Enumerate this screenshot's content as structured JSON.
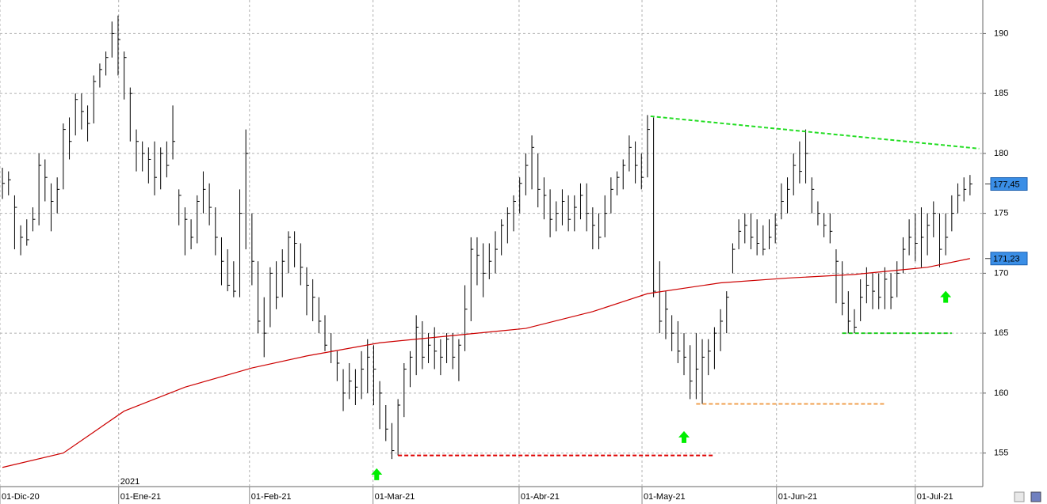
{
  "chart_data": {
    "type": "ohlc",
    "xlim": [
      -0.4,
      161.1
    ],
    "xticks": [
      {
        "value": -0.4,
        "label": "01-Dic-20"
      },
      {
        "value": 19.1,
        "label": "01-Ene-21"
      },
      {
        "value": 40.6,
        "label": "01-Feb-21"
      },
      {
        "value": 60.9,
        "label": "01-Mar-21"
      },
      {
        "value": 84.9,
        "label": "01-Abr-21"
      },
      {
        "value": 105.1,
        "label": "01-May-21"
      },
      {
        "value": 127.2,
        "label": "01-Jun-21"
      },
      {
        "value": 150,
        "label": "01-Jul-21"
      }
    ],
    "year_marker": {
      "value": 19.1,
      "label": "2021"
    },
    "ylim": [
      152.2,
      192.8
    ],
    "yticks": [
      155,
      160,
      165,
      170,
      175,
      180,
      185,
      190
    ],
    "grid": true,
    "color": "#000000",
    "high": [
      178.8,
      178.5,
      176.5,
      174,
      174.5,
      175.5,
      180,
      179.5,
      177.5,
      178,
      182.5,
      183,
      185,
      185,
      184,
      186.5,
      187.5,
      188.5,
      191,
      191.5,
      188.5,
      185.5,
      182,
      181,
      180.5,
      181,
      180.5,
      181,
      184,
      177,
      175.5,
      174.5,
      176.5,
      178.5,
      177.5,
      175.5,
      173,
      172,
      171,
      177,
      182,
      175,
      171,
      168,
      170.5,
      171,
      172,
      173.5,
      173.5,
      172.5,
      170.5,
      169.5,
      168,
      166.5,
      165,
      163.5,
      162,
      162.5,
      162,
      163.5,
      164.5,
      164,
      161,
      159,
      157.5,
      159.5,
      162.5,
      163.5,
      166.5,
      166,
      165,
      165.5,
      164.5,
      165,
      165,
      164.5,
      169,
      173,
      173,
      172.5,
      172.5,
      173.5,
      174.5,
      175.5,
      176.5,
      178,
      180,
      181.5,
      180,
      178,
      177,
      176,
      177,
      176.5,
      176.5,
      177.5,
      177.5,
      175.5,
      175,
      176.5,
      178,
      178.5,
      179.5,
      181.5,
      181,
      180,
      183.2,
      183,
      171,
      168.5,
      166.5,
      166,
      165,
      164,
      165,
      164.5,
      164.5,
      165.5,
      167,
      168.5,
      172.5,
      174.5,
      175,
      175,
      174.5,
      174,
      174.5,
      175,
      177.5,
      178,
      180,
      181,
      182,
      178,
      176,
      175,
      175,
      172,
      171,
      168.5,
      167,
      169.5,
      170.5,
      170,
      170,
      170.5,
      170,
      171,
      173,
      174.5,
      175,
      175.5,
      175,
      176,
      175,
      175,
      176.5,
      177.5,
      178,
      178.2
    ],
    "low": [
      176.2,
      176.5,
      172,
      171.5,
      172.3,
      173.5,
      174,
      176,
      173.5,
      175,
      177,
      179.5,
      181.5,
      182,
      181,
      182.5,
      185.5,
      186.5,
      188,
      186.5,
      184.5,
      181,
      178.5,
      178.5,
      177.5,
      176.5,
      177,
      178,
      179.5,
      174,
      171.5,
      172,
      172.5,
      175,
      174,
      171.5,
      169,
      168.5,
      168,
      168,
      172,
      169,
      165,
      163,
      165.5,
      167,
      168,
      170,
      170.5,
      169,
      166.5,
      166,
      165,
      163.5,
      162.5,
      161,
      158.5,
      159.5,
      159,
      159.5,
      160,
      159,
      157,
      156,
      154.5,
      154.8,
      158,
      160.5,
      161.5,
      162,
      162.5,
      162,
      161.5,
      162.5,
      162,
      161,
      163.5,
      166,
      169,
      168,
      169.5,
      170,
      171.5,
      172.5,
      173.5,
      175,
      176.5,
      177,
      175.5,
      174.5,
      173,
      173.5,
      174,
      173.5,
      173.5,
      174.5,
      173.5,
      172,
      172,
      173,
      175,
      176.5,
      177,
      178.5,
      177.5,
      177,
      178,
      168,
      165,
      164.5,
      163.5,
      162.5,
      161.5,
      159.5,
      159.5,
      159.1,
      161.5,
      162,
      163.5,
      165,
      170,
      172,
      172.5,
      172,
      171.5,
      171.5,
      172,
      172.5,
      174.5,
      175,
      176.5,
      177.5,
      177.5,
      175,
      174,
      173,
      172.5,
      167.5,
      166.5,
      165,
      165,
      166,
      167.5,
      167,
      167,
      167,
      167,
      168,
      170,
      171.5,
      171,
      170.5,
      171.5,
      173,
      170.5,
      171.5,
      173.5,
      175,
      176,
      176.5
    ],
    "close": [
      177.5,
      177.8,
      175.5,
      173,
      172.8,
      174.5,
      179,
      178,
      176,
      177,
      182,
      181,
      184.5,
      183.5,
      182.5,
      186,
      187,
      188,
      190,
      189.5,
      188,
      185,
      181,
      180,
      179.5,
      178,
      180,
      179,
      181,
      176.5,
      174.5,
      173,
      176,
      177,
      175.5,
      173,
      171,
      169,
      168.5,
      175,
      180,
      171,
      166,
      165,
      170,
      168,
      171,
      173,
      172.5,
      170.5,
      169,
      168,
      166,
      164,
      163.5,
      162.5,
      160,
      161,
      160.5,
      162,
      163,
      162,
      160,
      157,
      155.2,
      159,
      162,
      163,
      165.5,
      163,
      164,
      163.5,
      163,
      164.5,
      163,
      164,
      167,
      172,
      171.5,
      170,
      171,
      172,
      174,
      175,
      176,
      177.5,
      179,
      180.5,
      177,
      176.5,
      174.5,
      175,
      176,
      174.5,
      175.5,
      176.5,
      175,
      174,
      173,
      175,
      177,
      178,
      179,
      180.5,
      179,
      178,
      182,
      168.5,
      166,
      167,
      165,
      163.5,
      163,
      161,
      162,
      163,
      163.5,
      165,
      166,
      168,
      172,
      173.5,
      174,
      173,
      172.5,
      172,
      173,
      174,
      176,
      177,
      179,
      178.5,
      180,
      177,
      175,
      174,
      173.5,
      171,
      167.5,
      166,
      165.5,
      168,
      169,
      168.5,
      168,
      169.5,
      168,
      170,
      172,
      173,
      172.5,
      173,
      174,
      175,
      172,
      173,
      175,
      176.5,
      177,
      177.45
    ],
    "moving_average": {
      "color": "#cc0000",
      "x": [
        0,
        10,
        20,
        30,
        41,
        50,
        62,
        74,
        86,
        97,
        106,
        118,
        129,
        140,
        152,
        159
      ],
      "values": [
        153.8,
        155,
        158.5,
        160.5,
        162.1,
        163.1,
        164.2,
        164.8,
        165.4,
        166.8,
        168.3,
        169.2,
        169.6,
        169.9,
        170.5,
        171.23
      ]
    },
    "last_labels": [
      {
        "value": 177.45,
        "label": "177,45"
      },
      {
        "value": 171.23,
        "label": "171,23"
      }
    ],
    "lines": [
      {
        "color": "#22dd22",
        "x": [
          106.5,
          160.5
        ],
        "values": [
          183.1,
          180.4
        ]
      },
      {
        "color": "#dd0000",
        "x": [
          65,
          117
        ],
        "values": [
          154.8,
          154.8
        ]
      },
      {
        "color": "#f0a050",
        "x": [
          114,
          145
        ],
        "values": [
          159.1,
          159.1
        ]
      },
      {
        "color": "#22cc22",
        "x": [
          138,
          156
        ],
        "values": [
          165,
          165
        ]
      }
    ],
    "arrows": {
      "color": "#00ee00",
      "x": [
        61.5,
        112,
        155
      ],
      "values": [
        153.2,
        156.3,
        168
      ]
    }
  }
}
